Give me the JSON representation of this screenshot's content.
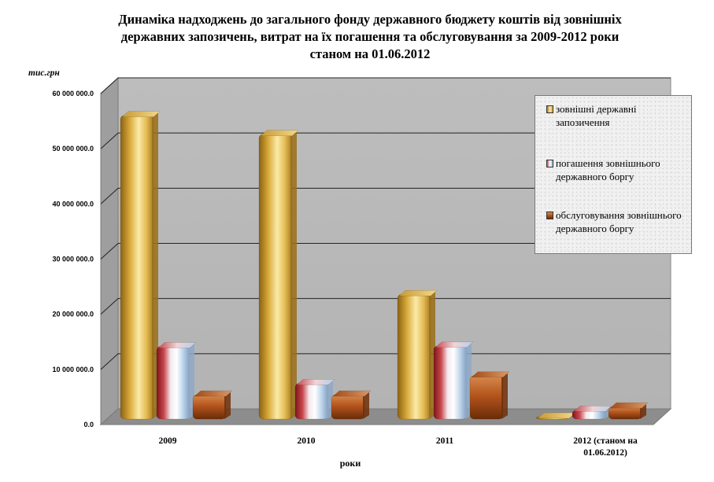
{
  "chart_data": {
    "type": "bar",
    "title": "Динаміка надходжень до загального фонду державного бюджету коштів від зовнішніх державних запозичень, витрат на їх погашення та обслуговування за 2009-2012 роки станом на 01.06.2012",
    "title_lines": [
      "Динаміка надходжень до загального фонду державного бюджету коштів від зовнішніх",
      "державних запозичень, витрат на їх погашення та обслуговування за 2009-2012 роки",
      "станом на 01.06.2012"
    ],
    "ylabel": "тис.грн",
    "xlabel": "роки",
    "categories": [
      "2009",
      "2010",
      "2011",
      "2012  (станом на 01.06.2012)"
    ],
    "category_lines": [
      [
        "2009"
      ],
      [
        "2010"
      ],
      [
        "2011"
      ],
      [
        "2012  (станом на",
        "01.06.2012)"
      ]
    ],
    "ylim": [
      0,
      60000000
    ],
    "yticks": [
      0,
      10000000,
      20000000,
      30000000,
      40000000,
      50000000,
      60000000
    ],
    "ytick_labels": [
      "0.0",
      "10 000 000.0",
      "20 000 000.0",
      "30 000 000.0",
      "40 000 000.0",
      "50 000 000.0",
      "60 000 000.0"
    ],
    "grid": true,
    "style": "3d-cylinder",
    "legend_position": "right",
    "series": [
      {
        "name": "зовнішні державні запозичення",
        "values": [
          56000000,
          52500000,
          23000000,
          300000
        ],
        "color": "#e8c35a"
      },
      {
        "name": "погашення зовнішнього державного боргу",
        "values": [
          13400000,
          6600000,
          13500000,
          1700000
        ],
        "color": "#c8474e"
      },
      {
        "name": "обслуговування зовнішнього державного боргу",
        "values": [
          4500000,
          4500000,
          8000000,
          2300000
        ],
        "color": "#b5551d"
      }
    ]
  }
}
